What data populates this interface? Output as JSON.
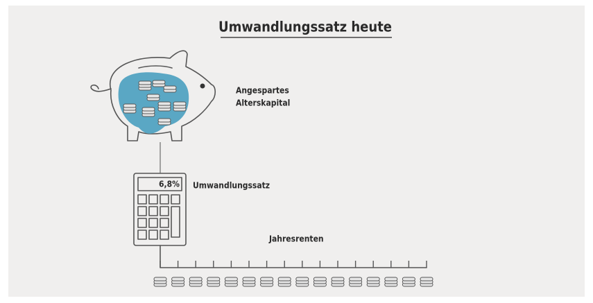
{
  "title": "Umwandlungssatz heute",
  "piggy_bank": {
    "label_lines": [
      "Angespartes",
      "Alterskapital"
    ]
  },
  "calculator": {
    "display": "6,8%",
    "label": "Umwandlungssatz"
  },
  "annuities": {
    "label": "Jahresrenten"
  }
}
